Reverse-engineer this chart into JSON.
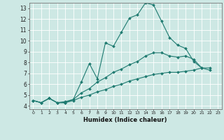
{
  "xlabel": "Humidex (Indice chaleur)",
  "bg_color": "#cde8e4",
  "grid_color": "#ffffff",
  "line_color": "#1e7a70",
  "xlim": [
    -0.5,
    23.5
  ],
  "ylim": [
    3.7,
    13.5
  ],
  "yticks": [
    4,
    5,
    6,
    7,
    8,
    9,
    10,
    11,
    12,
    13
  ],
  "xticks": [
    0,
    1,
    2,
    3,
    4,
    5,
    6,
    7,
    8,
    9,
    10,
    11,
    12,
    13,
    14,
    15,
    16,
    17,
    18,
    19,
    20,
    21,
    22,
    23
  ],
  "line1_x": [
    0,
    1,
    2,
    3,
    4,
    5,
    6,
    7,
    8,
    9,
    10,
    11,
    12,
    13,
    14,
    15,
    16,
    17,
    18,
    19,
    20,
    21
  ],
  "line1_y": [
    4.5,
    4.3,
    4.7,
    4.3,
    4.3,
    4.6,
    6.2,
    7.9,
    6.5,
    9.8,
    9.5,
    10.8,
    12.1,
    12.4,
    13.5,
    13.3,
    11.8,
    10.3,
    9.6,
    9.3,
    8.1,
    7.5
  ],
  "line2_x": [
    0,
    1,
    2,
    3,
    4,
    5,
    6,
    7,
    8,
    9,
    10,
    11,
    12,
    13,
    14,
    15,
    16,
    17,
    18,
    19,
    20,
    21,
    22
  ],
  "line2_y": [
    4.5,
    4.3,
    4.7,
    4.3,
    4.4,
    4.6,
    5.2,
    5.6,
    6.2,
    6.6,
    7.1,
    7.4,
    7.8,
    8.1,
    8.6,
    8.9,
    8.9,
    8.6,
    8.5,
    8.6,
    8.3,
    7.5,
    7.3
  ],
  "line3_x": [
    0,
    1,
    2,
    3,
    4,
    5,
    6,
    7,
    8,
    9,
    10,
    11,
    12,
    13,
    14,
    15,
    16,
    17,
    18,
    19,
    20,
    21,
    22
  ],
  "line3_y": [
    4.5,
    4.3,
    4.7,
    4.3,
    4.3,
    4.5,
    4.8,
    5.0,
    5.3,
    5.5,
    5.8,
    6.0,
    6.3,
    6.5,
    6.7,
    6.9,
    7.0,
    7.1,
    7.1,
    7.2,
    7.3,
    7.5,
    7.5
  ]
}
